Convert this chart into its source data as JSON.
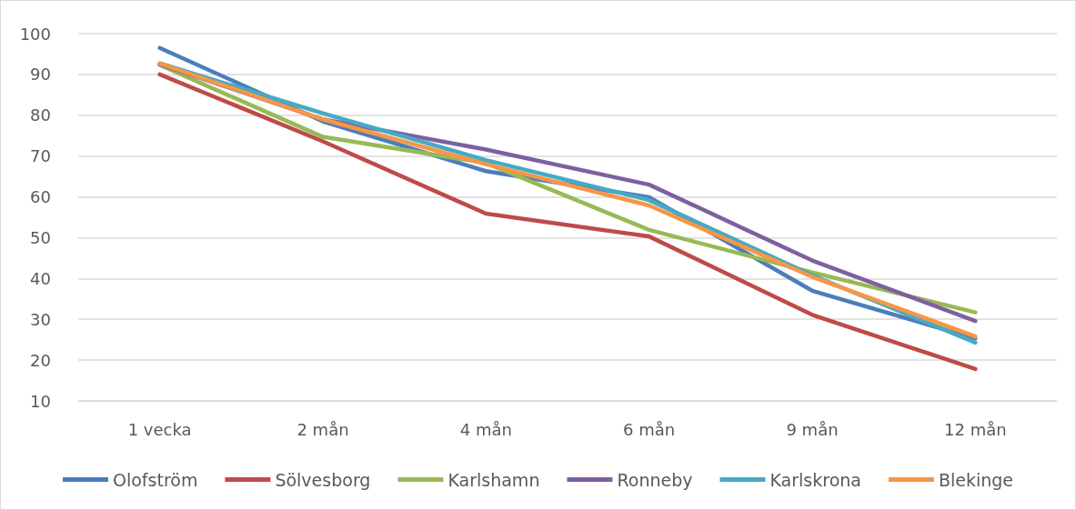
{
  "chart_data": {
    "type": "line",
    "categories": [
      "1 vecka",
      "2 mån",
      "4 mån",
      "6 mån",
      "9 mån",
      "12 mån"
    ],
    "series": [
      {
        "name": "Olofström",
        "color": "#4a7ebb",
        "values": [
          96.5,
          78.5,
          66.3,
          59.9,
          37.0,
          25.3
        ]
      },
      {
        "name": "Sölvesborg",
        "color": "#be4b48",
        "values": [
          90,
          73.6,
          55.9,
          50.3,
          31.1,
          17.8
        ]
      },
      {
        "name": "Karlshamn",
        "color": "#98b954",
        "values": [
          92.3,
          74.7,
          68.3,
          51.9,
          41.5,
          31.7
        ]
      },
      {
        "name": "Ronneby",
        "color": "#7d60a0",
        "values": [
          92.5,
          79,
          71.6,
          63,
          44.4,
          29.6
        ]
      },
      {
        "name": "Karlskrona",
        "color": "#46aac5",
        "values": [
          92.7,
          80.5,
          69,
          59.2,
          40.8,
          24.3
        ]
      },
      {
        "name": "Blekinge",
        "color": "#f79646",
        "values": [
          92.7,
          79,
          68,
          57.9,
          40.4,
          25.8
        ]
      }
    ],
    "ylim": [
      10,
      100
    ],
    "yticks": [
      10,
      20,
      30,
      40,
      50,
      60,
      70,
      80,
      90,
      100
    ],
    "grid": "y",
    "legend": "bottom",
    "marker": "none",
    "line_style": "solid"
  }
}
